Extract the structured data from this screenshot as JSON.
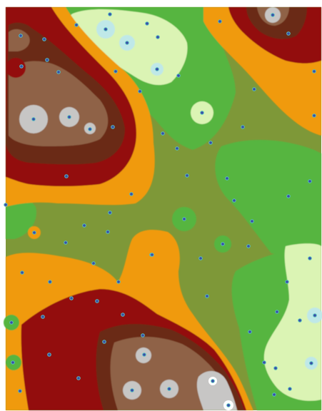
{
  "map": {
    "type": "interpolated-surface",
    "palette": {
      "very_low": "#8fc85a",
      "low": "#57b540",
      "mid": "#7e9838",
      "mid_high": "#f09a0a",
      "high": "#930e0b",
      "higher": "#6b2b13",
      "very_high": "#8f6247",
      "peak": "#c7c6c5",
      "top": "#ffffff",
      "pale": "#dbf4b4",
      "cyan": "#bfe8e8",
      "point_fill": "#3a4aa8",
      "point_ring": "#55c0c0"
    },
    "sample_points_count": 82
  }
}
